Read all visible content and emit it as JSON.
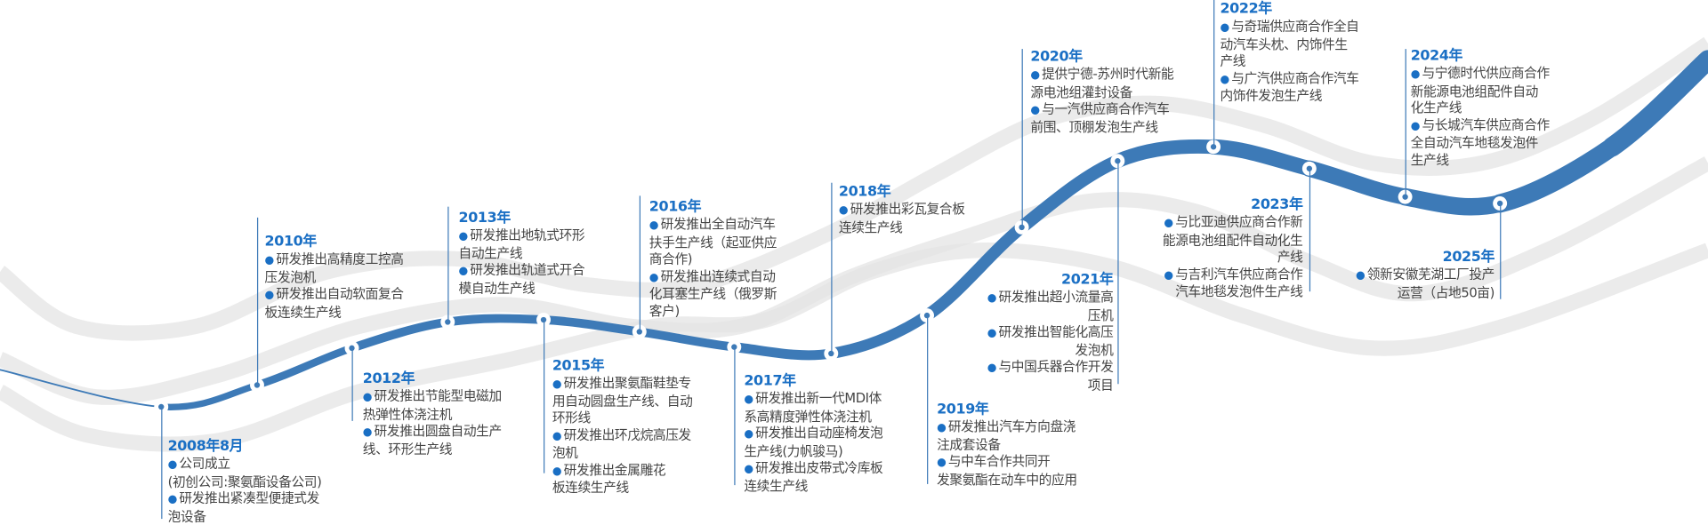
{
  "colors": {
    "curve": "#3d7ab7",
    "year": "#1a6fc4",
    "band": "#e4e4e4",
    "text": "#444444"
  },
  "milestones": [
    {
      "year": "2008年8月",
      "items": [
        "公司成立\n(初创公司:聚氨酯设备公司)",
        "研发推出紧凑型便捷式发\n泡设备"
      ]
    },
    {
      "year": "2010年",
      "items": [
        "研发推出高精度工控高\n压发泡机",
        "研发推出自动软面复合\n板连续生产线"
      ]
    },
    {
      "year": "2012年",
      "items": [
        "研发推出节能型电磁加\n热弹性体浇注机",
        "研发推出圆盘自动生产\n线、环形生产线"
      ]
    },
    {
      "year": "2013年",
      "items": [
        "研发推出地轨式环形\n自动生产线",
        "研发推出轨道式开合\n模自动生产线"
      ]
    },
    {
      "year": "2015年",
      "items": [
        "研发推出聚氨酯鞋垫专\n用自动圆盘生产线、自动\n环形线",
        "研发推出环戊烷高压发\n泡机",
        "研发推出金属雕花\n板连续生产线"
      ]
    },
    {
      "year": "2016年",
      "items": [
        "研发推出全自动汽车\n扶手生产线（起亚供应\n商合作)",
        "研发推出连续式自动\n化耳塞生产线（俄罗斯\n客户)"
      ]
    },
    {
      "year": "2017年",
      "items": [
        "研发推出新一代MDI体\n系高精度弹性体浇注机",
        "研发推出自动座椅发泡\n生产线(力帆骏马)",
        "研发推出皮带式冷库板\n连续生产线"
      ]
    },
    {
      "year": "2018年",
      "items": [
        "研发推出彩瓦复合板\n连续生产线"
      ]
    },
    {
      "year": "2019年",
      "items": [
        "研发推出汽车方向盘浇\n注成套设备",
        "与中车合作共同开\n发聚氨酯在动车中的应用"
      ]
    },
    {
      "year": "2020年",
      "items": [
        "提供宁德-苏州时代新能\n源电池组灌封设备",
        "与一汽供应商合作汽车\n前围、顶棚发泡生产线"
      ]
    },
    {
      "year": "2021年",
      "items": [
        "研发推出超小流量高\n压机",
        "研发推出智能化高压\n发泡机",
        "与中国兵器合作开发\n项目"
      ]
    },
    {
      "year": "2022年",
      "items": [
        "与奇瑞供应商合作全自\n动汽车头枕、内饰件生\n产线",
        "与广汽供应商合作汽车\n内饰件发泡生产线"
      ]
    },
    {
      "year": "2023年",
      "items": [
        "与比亚迪供应商合作新\n能源电池组配件自动化生\n产线",
        "与吉利汽车供应商合作\n汽车地毯发泡件生产线"
      ]
    },
    {
      "year": "2024年",
      "items": [
        "与宁德时代供应商合作\n新能源电池组配件自动\n化生产线",
        "与长城汽车供应商合作\n全自动汽车地毯发泡件\n生产线"
      ]
    },
    {
      "year": "2025年",
      "items": [
        "领新安徽芜湖工厂投产\n运营（占地50亩)"
      ]
    }
  ]
}
